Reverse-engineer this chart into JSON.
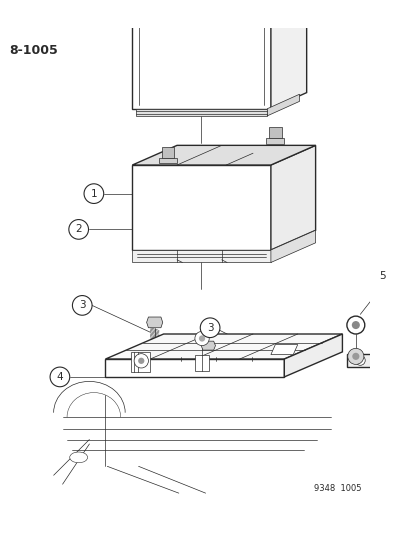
{
  "title_code": "8-1005",
  "footer_code": "9348  1005",
  "background_color": "#ffffff",
  "line_color": "#2a2a2a",
  "fig_width": 4.14,
  "fig_height": 5.33,
  "dpi": 100
}
